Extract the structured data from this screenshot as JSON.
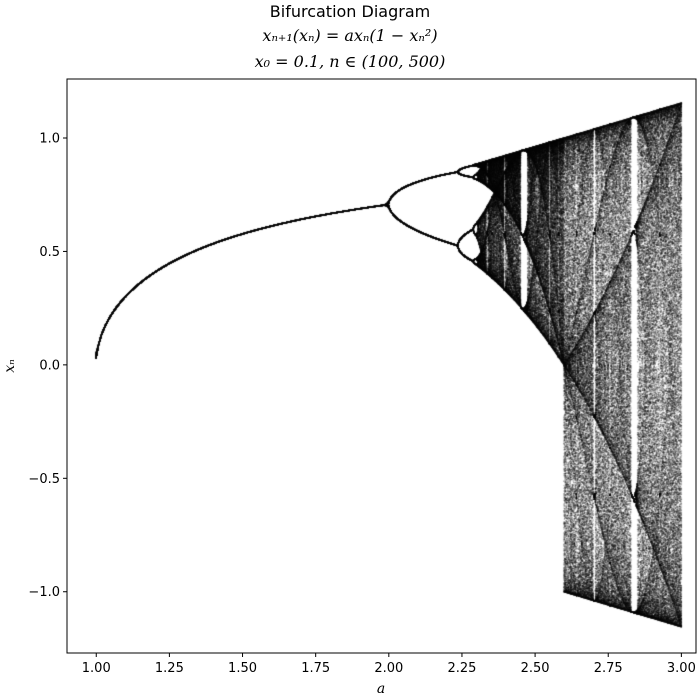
{
  "chart_data": {
    "type": "scatter",
    "title": "Bifurcation Diagram",
    "subtitle_lines": [
      "xₙ₊₁(xₙ) = axₙ(1 − xₙ²)",
      "x₀ = 0.1, n ∈ (100, 500)"
    ],
    "xlabel": "a",
    "ylabel": "xₙ",
    "xlim": [
      0.9,
      3.05
    ],
    "ylim": [
      -1.27,
      1.26
    ],
    "x_ticks": [
      1.0,
      1.25,
      1.5,
      1.75,
      2.0,
      2.25,
      2.5,
      2.75,
      3.0
    ],
    "x_tick_labels": [
      "1.00",
      "1.25",
      "1.50",
      "1.75",
      "2.00",
      "2.25",
      "2.50",
      "2.75",
      "3.00"
    ],
    "y_ticks": [
      -1.0,
      -0.5,
      0.0,
      0.5,
      1.0
    ],
    "y_tick_labels": [
      "−1.0",
      "−0.5",
      "0.0",
      "0.5",
      "1.0"
    ],
    "map": {
      "x0": 0.1,
      "n_start": 100,
      "n_end": 500,
      "a_min": 1.0,
      "a_max": 3.0
    },
    "grid": false,
    "marker_color": "#000000"
  }
}
